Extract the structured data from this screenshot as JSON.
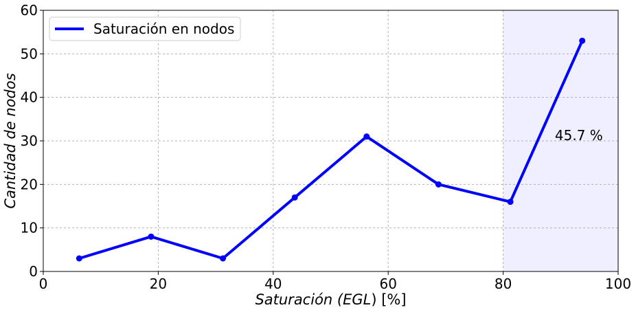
{
  "chart_data": {
    "type": "line",
    "xlabel_main": "Saturación (",
    "xlabel_italic_part": "EGL",
    "xlabel_end": ") [%]",
    "ylabel": "Cantidad de nodos",
    "xlim": [
      0,
      100
    ],
    "ylim": [
      0,
      60
    ],
    "xticks": [
      0,
      20,
      40,
      60,
      80,
      100
    ],
    "yticks": [
      0,
      10,
      20,
      30,
      40,
      50,
      60
    ],
    "grid": true,
    "legend_position": "top-left",
    "series": [
      {
        "name": "Saturación en nodos",
        "color": "#0000ff",
        "x": [
          6.25,
          18.75,
          31.25,
          43.75,
          56.25,
          68.75,
          81.25,
          93.75
        ],
        "y": [
          3,
          8,
          3,
          17,
          31,
          20,
          16,
          53
        ]
      }
    ],
    "highlight_region": {
      "x_start": 80,
      "x_end": 100,
      "color": "#efefff"
    },
    "annotation": {
      "text": "45.7 %",
      "x": 89,
      "y": 30
    }
  }
}
